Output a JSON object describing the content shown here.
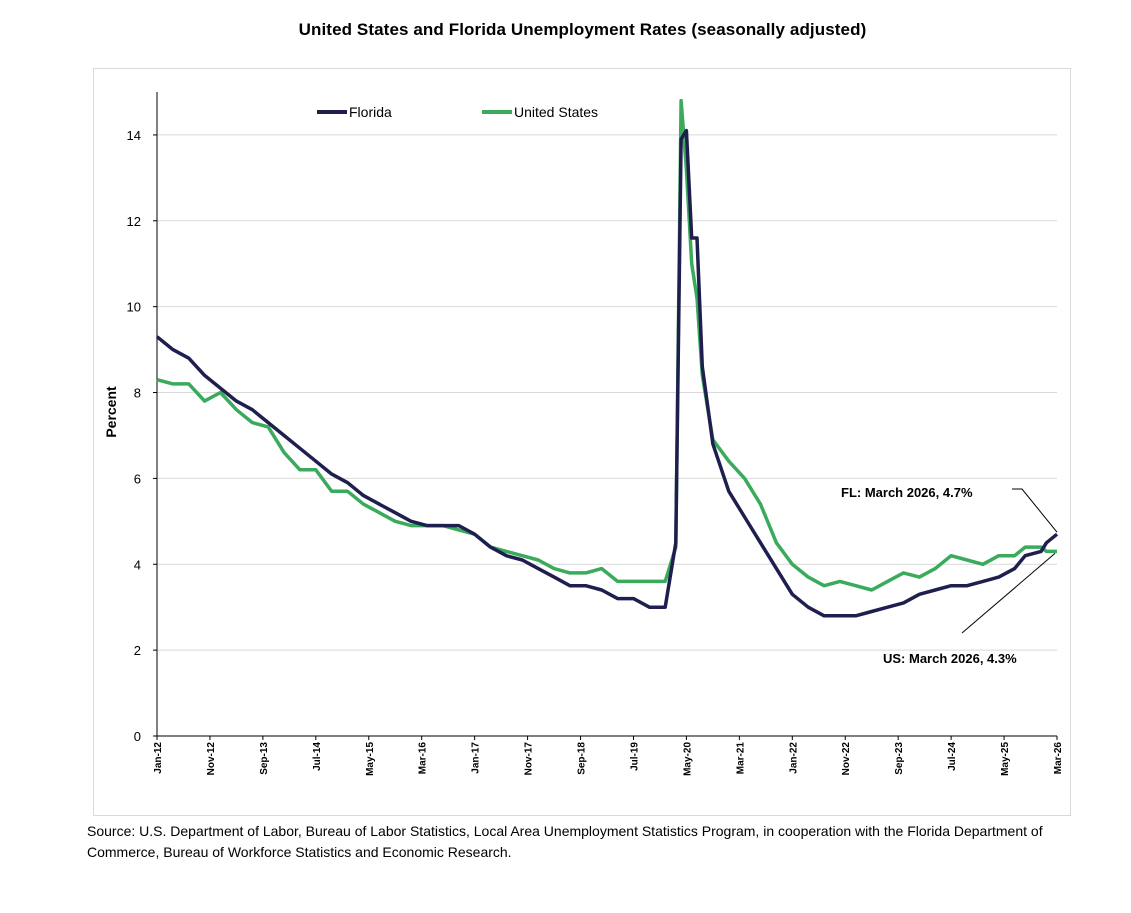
{
  "chart_data": {
    "type": "line",
    "title": "United States and Florida Unemployment Rates (seasonally adjusted)",
    "ylabel": "Percent",
    "xlabel": "",
    "ylim": [
      0,
      15
    ],
    "yticks": [
      0,
      2,
      4,
      6,
      8,
      10,
      12,
      14
    ],
    "x_range": [
      "2012-01",
      "2026-03"
    ],
    "x_ticks": [
      "Jan-12",
      "Nov-12",
      "Sep-13",
      "Jul-14",
      "May-15",
      "Mar-16",
      "Jan-17",
      "Nov-17",
      "Sep-18",
      "Jul-19",
      "May-20",
      "Mar-21",
      "Jan-22",
      "Nov-22",
      "Sep-23",
      "Jul-24",
      "May-25",
      "Mar-26"
    ],
    "grid": true,
    "legend": "top",
    "series": [
      {
        "name": "Florida",
        "color": "#1f1f4f",
        "points": [
          [
            "2012-01",
            9.3
          ],
          [
            "2012-04",
            9.0
          ],
          [
            "2012-07",
            8.8
          ],
          [
            "2012-10",
            8.4
          ],
          [
            "2013-01",
            8.1
          ],
          [
            "2013-04",
            7.8
          ],
          [
            "2013-07",
            7.6
          ],
          [
            "2013-10",
            7.3
          ],
          [
            "2014-01",
            7.0
          ],
          [
            "2014-04",
            6.7
          ],
          [
            "2014-07",
            6.4
          ],
          [
            "2014-10",
            6.1
          ],
          [
            "2015-01",
            5.9
          ],
          [
            "2015-04",
            5.6
          ],
          [
            "2015-07",
            5.4
          ],
          [
            "2015-10",
            5.2
          ],
          [
            "2016-01",
            5.0
          ],
          [
            "2016-04",
            4.9
          ],
          [
            "2016-07",
            4.9
          ],
          [
            "2016-10",
            4.9
          ],
          [
            "2017-01",
            4.7
          ],
          [
            "2017-04",
            4.4
          ],
          [
            "2017-07",
            4.2
          ],
          [
            "2017-10",
            4.1
          ],
          [
            "2018-01",
            3.9
          ],
          [
            "2018-04",
            3.7
          ],
          [
            "2018-07",
            3.5
          ],
          [
            "2018-10",
            3.5
          ],
          [
            "2019-01",
            3.4
          ],
          [
            "2019-04",
            3.2
          ],
          [
            "2019-07",
            3.2
          ],
          [
            "2019-10",
            3.0
          ],
          [
            "2020-01",
            3.0
          ],
          [
            "2020-03",
            4.5
          ],
          [
            "2020-04",
            13.9
          ],
          [
            "2020-05",
            14.1
          ],
          [
            "2020-06",
            11.6
          ],
          [
            "2020-07",
            11.6
          ],
          [
            "2020-08",
            8.6
          ],
          [
            "2020-10",
            6.8
          ],
          [
            "2021-01",
            5.7
          ],
          [
            "2021-04",
            5.1
          ],
          [
            "2021-07",
            4.5
          ],
          [
            "2021-10",
            3.9
          ],
          [
            "2022-01",
            3.3
          ],
          [
            "2022-04",
            3.0
          ],
          [
            "2022-07",
            2.8
          ],
          [
            "2022-10",
            2.8
          ],
          [
            "2023-01",
            2.8
          ],
          [
            "2023-04",
            2.9
          ],
          [
            "2023-07",
            3.0
          ],
          [
            "2023-10",
            3.1
          ],
          [
            "2024-01",
            3.3
          ],
          [
            "2024-04",
            3.4
          ],
          [
            "2024-07",
            3.5
          ],
          [
            "2024-10",
            3.5
          ],
          [
            "2025-01",
            3.6
          ],
          [
            "2025-04",
            3.7
          ],
          [
            "2025-07",
            3.9
          ],
          [
            "2025-09",
            4.2
          ],
          [
            "2025-12",
            4.3
          ],
          [
            "2026-01",
            4.5
          ],
          [
            "2026-03",
            4.7
          ]
        ]
      },
      {
        "name": "United States",
        "color": "#3aaa5c",
        "points": [
          [
            "2012-01",
            8.3
          ],
          [
            "2012-04",
            8.2
          ],
          [
            "2012-07",
            8.2
          ],
          [
            "2012-10",
            7.8
          ],
          [
            "2013-01",
            8.0
          ],
          [
            "2013-04",
            7.6
          ],
          [
            "2013-07",
            7.3
          ],
          [
            "2013-10",
            7.2
          ],
          [
            "2014-01",
            6.6
          ],
          [
            "2014-04",
            6.2
          ],
          [
            "2014-07",
            6.2
          ],
          [
            "2014-10",
            5.7
          ],
          [
            "2015-01",
            5.7
          ],
          [
            "2015-04",
            5.4
          ],
          [
            "2015-07",
            5.2
          ],
          [
            "2015-10",
            5.0
          ],
          [
            "2016-01",
            4.9
          ],
          [
            "2016-04",
            4.9
          ],
          [
            "2016-07",
            4.9
          ],
          [
            "2016-10",
            4.8
          ],
          [
            "2017-01",
            4.7
          ],
          [
            "2017-04",
            4.4
          ],
          [
            "2017-07",
            4.3
          ],
          [
            "2017-10",
            4.2
          ],
          [
            "2018-01",
            4.1
          ],
          [
            "2018-04",
            3.9
          ],
          [
            "2018-07",
            3.8
          ],
          [
            "2018-10",
            3.8
          ],
          [
            "2019-01",
            3.9
          ],
          [
            "2019-04",
            3.6
          ],
          [
            "2019-07",
            3.6
          ],
          [
            "2019-10",
            3.6
          ],
          [
            "2020-01",
            3.6
          ],
          [
            "2020-03",
            4.4
          ],
          [
            "2020-04",
            14.8
          ],
          [
            "2020-05",
            13.2
          ],
          [
            "2020-06",
            11.0
          ],
          [
            "2020-07",
            10.2
          ],
          [
            "2020-08",
            8.4
          ],
          [
            "2020-10",
            6.9
          ],
          [
            "2021-01",
            6.4
          ],
          [
            "2021-04",
            6.0
          ],
          [
            "2021-07",
            5.4
          ],
          [
            "2021-10",
            4.5
          ],
          [
            "2022-01",
            4.0
          ],
          [
            "2022-04",
            3.7
          ],
          [
            "2022-07",
            3.5
          ],
          [
            "2022-10",
            3.6
          ],
          [
            "2023-01",
            3.5
          ],
          [
            "2023-04",
            3.4
          ],
          [
            "2023-07",
            3.6
          ],
          [
            "2023-10",
            3.8
          ],
          [
            "2024-01",
            3.7
          ],
          [
            "2024-04",
            3.9
          ],
          [
            "2024-07",
            4.2
          ],
          [
            "2024-10",
            4.1
          ],
          [
            "2025-01",
            4.0
          ],
          [
            "2025-04",
            4.2
          ],
          [
            "2025-07",
            4.2
          ],
          [
            "2025-09",
            4.4
          ],
          [
            "2025-12",
            4.4
          ],
          [
            "2026-01",
            4.3
          ],
          [
            "2026-03",
            4.3
          ]
        ]
      }
    ],
    "annotations": [
      {
        "text": "FL: March 2026, 4.7%",
        "series": "Florida",
        "x": "2026-03",
        "y": 4.7
      },
      {
        "text": "US: March 2026, 4.3%",
        "series": "United States",
        "x": "2026-03",
        "y": 4.3
      }
    ],
    "source": "Source:  U.S. Department of Labor, Bureau of Labor Statistics, Local Area Unemployment Statistics Program, in cooperation with the Florida Department of Commerce, Bureau of Workforce Statistics and Economic Research."
  }
}
